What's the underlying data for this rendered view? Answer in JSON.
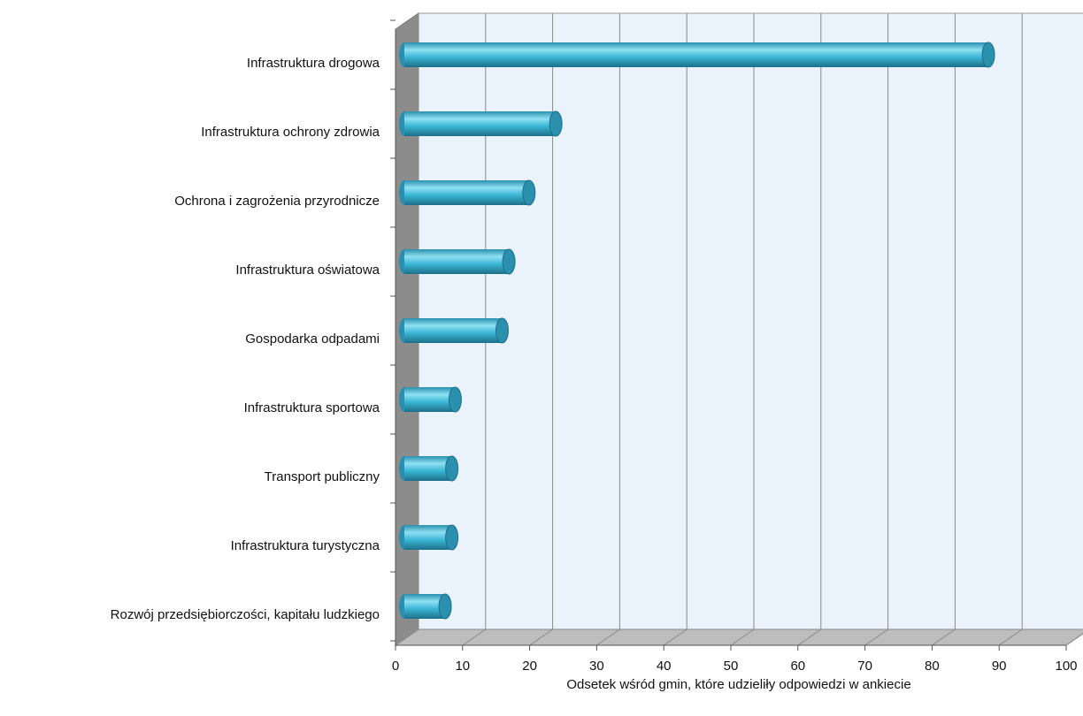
{
  "chart_data": {
    "type": "bar",
    "orientation": "horizontal",
    "x_label": "Odsetek wśród gmin, które udzieliły odpowiedzi w ankiecie",
    "categories": [
      "Infrastruktura drogowa",
      "Infrastruktura ochrony zdrowia",
      "Ochrona i zagrożenia przyrodnicze",
      "Infrastruktura oświatowa",
      "Gospodarka odpadami",
      "Infrastruktura sportowa",
      "Transport publiczny",
      "Infrastruktura turystyczna",
      "Rozwój przedsiębiorczości, kapitału ludzkiego"
    ],
    "values": [
      88,
      23.5,
      19.5,
      16.5,
      15.5,
      8.5,
      8,
      8,
      7
    ],
    "color": "#3ab6d6",
    "xlim": [
      0,
      100
    ],
    "xticks": [
      0,
      10,
      20,
      30,
      40,
      50,
      60,
      70,
      80,
      90,
      100
    ],
    "grid": true
  }
}
